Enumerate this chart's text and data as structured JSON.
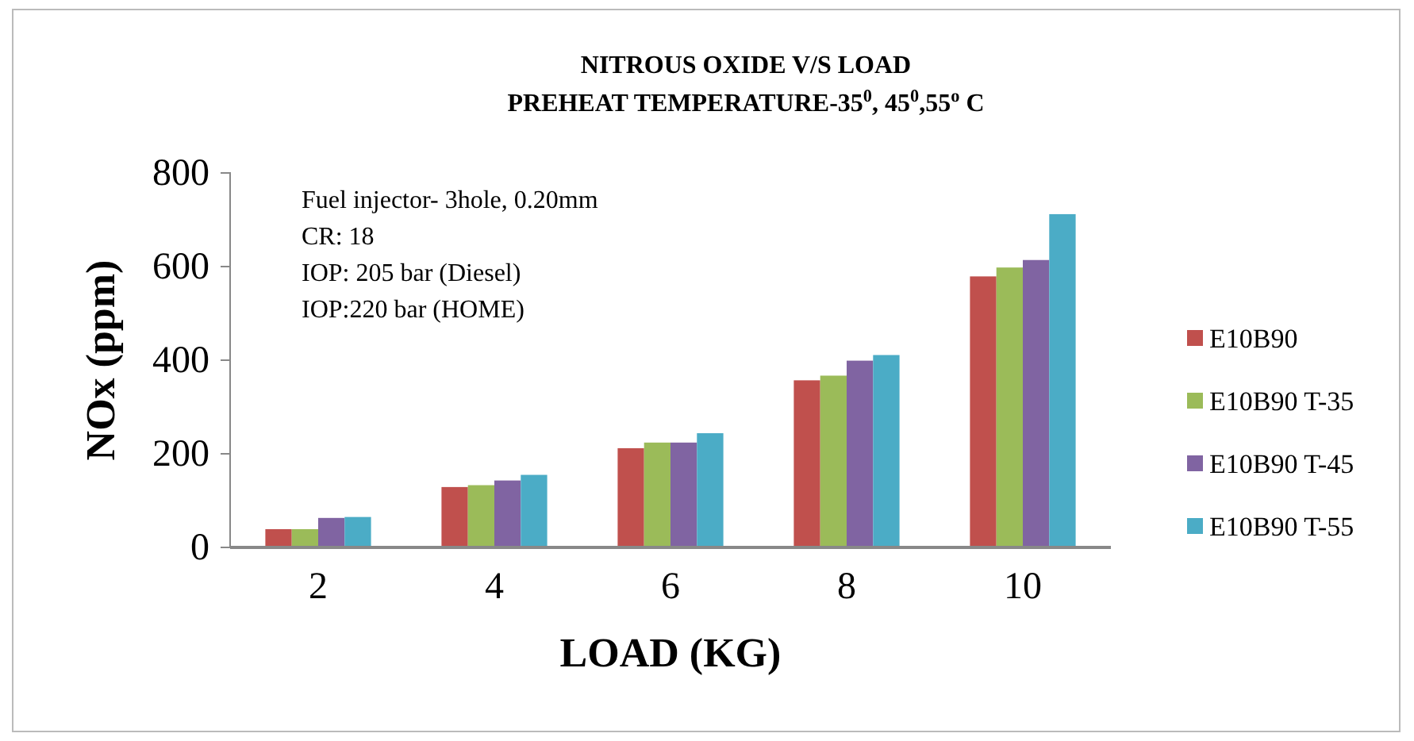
{
  "chart_data": {
    "type": "bar",
    "title": "NITROUS OXIDE V/S LOAD",
    "subtitle": "PREHEAT TEMPERATURE-35$^{0}$, 45$^{0}$,55$^{o}$ C",
    "xlabel": "LOAD (KG)",
    "ylabel": "NOx (ppm)",
    "categories": [
      "2",
      "4",
      "6",
      "8",
      "10"
    ],
    "series": [
      {
        "name": "E10B90",
        "color": "#c0504d",
        "values": [
          39,
          129,
          212,
          357,
          579
        ]
      },
      {
        "name": "E10B90 T-35",
        "color": "#9bbb59",
        "values": [
          39,
          133,
          224,
          367,
          598
        ]
      },
      {
        "name": "E10B90 T-45",
        "color": "#8064a2",
        "values": [
          63,
          143,
          224,
          399,
          614
        ]
      },
      {
        "name": "E10B90 T-55",
        "color": "#4bacc6",
        "values": [
          65,
          155,
          244,
          411,
          712
        ]
      }
    ],
    "ylim": [
      0,
      800
    ],
    "yticks": [
      0,
      200,
      400,
      600,
      800
    ],
    "grid": false,
    "legend": "right",
    "annotations": [
      "Fuel injector- 3hole, 0.20mm",
      "CR: 18",
      "IOP: 205 bar (Diesel)",
      "IOP:220 bar (HOME)"
    ]
  }
}
